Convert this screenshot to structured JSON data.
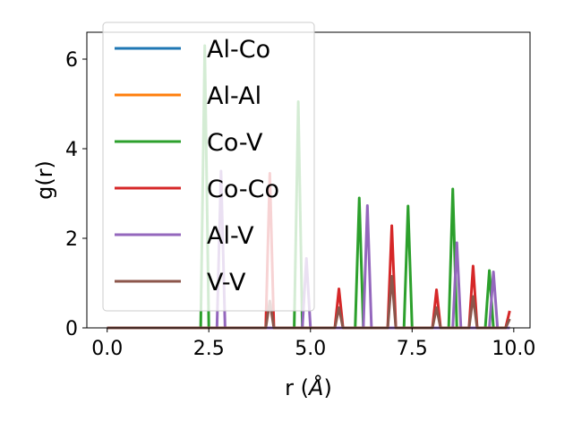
{
  "chart_data": {
    "type": "line",
    "xlabel_text": "r (",
    "xlabel_unit": "Å",
    "xlabel_close": ")",
    "ylabel": "g(r)",
    "xlim": [
      -0.5,
      10.4
    ],
    "ylim": [
      0,
      6.6
    ],
    "xticks": [
      "0.0",
      "2.5",
      "5.0",
      "7.5",
      "10.0"
    ],
    "xtick_values": [
      0,
      2.5,
      5,
      7.5,
      10
    ],
    "yticks": [
      "0",
      "2",
      "4",
      "6"
    ],
    "ytick_values": [
      0,
      2,
      4,
      6
    ],
    "legend_position": "upper-left",
    "grid": false,
    "peak_half_width": 0.1,
    "x_end": 9.9,
    "series": [
      {
        "name": "Al-Co",
        "color": "#1f77b4",
        "peaks": []
      },
      {
        "name": "Al-Al",
        "color": "#ff7f0e",
        "peaks": []
      },
      {
        "name": "Co-V",
        "color": "#2ca02c",
        "peaks": [
          [
            2.4,
            6.3
          ],
          [
            4.7,
            5.05
          ],
          [
            6.2,
            2.9
          ],
          [
            7.4,
            2.72
          ],
          [
            8.5,
            3.1
          ],
          [
            9.4,
            1.28
          ]
        ]
      },
      {
        "name": "Co-Co",
        "color": "#d62728",
        "peaks": [
          [
            4.0,
            3.45
          ],
          [
            5.7,
            0.87
          ],
          [
            7.0,
            2.28
          ],
          [
            8.1,
            0.85
          ],
          [
            9.0,
            1.38
          ],
          [
            9.9,
            0.38
          ]
        ]
      },
      {
        "name": "Al-V",
        "color": "#9467bd",
        "peaks": [
          [
            2.8,
            3.5
          ],
          [
            4.9,
            1.55
          ],
          [
            6.4,
            2.73
          ],
          [
            8.6,
            1.9
          ],
          [
            9.5,
            1.25
          ]
        ]
      },
      {
        "name": "V-V",
        "color": "#8c564b",
        "peaks": [
          [
            4.0,
            0.6
          ],
          [
            5.7,
            0.45
          ],
          [
            7.0,
            1.15
          ],
          [
            8.1,
            0.45
          ],
          [
            9.0,
            0.7
          ],
          [
            9.9,
            0.2
          ]
        ]
      }
    ]
  }
}
